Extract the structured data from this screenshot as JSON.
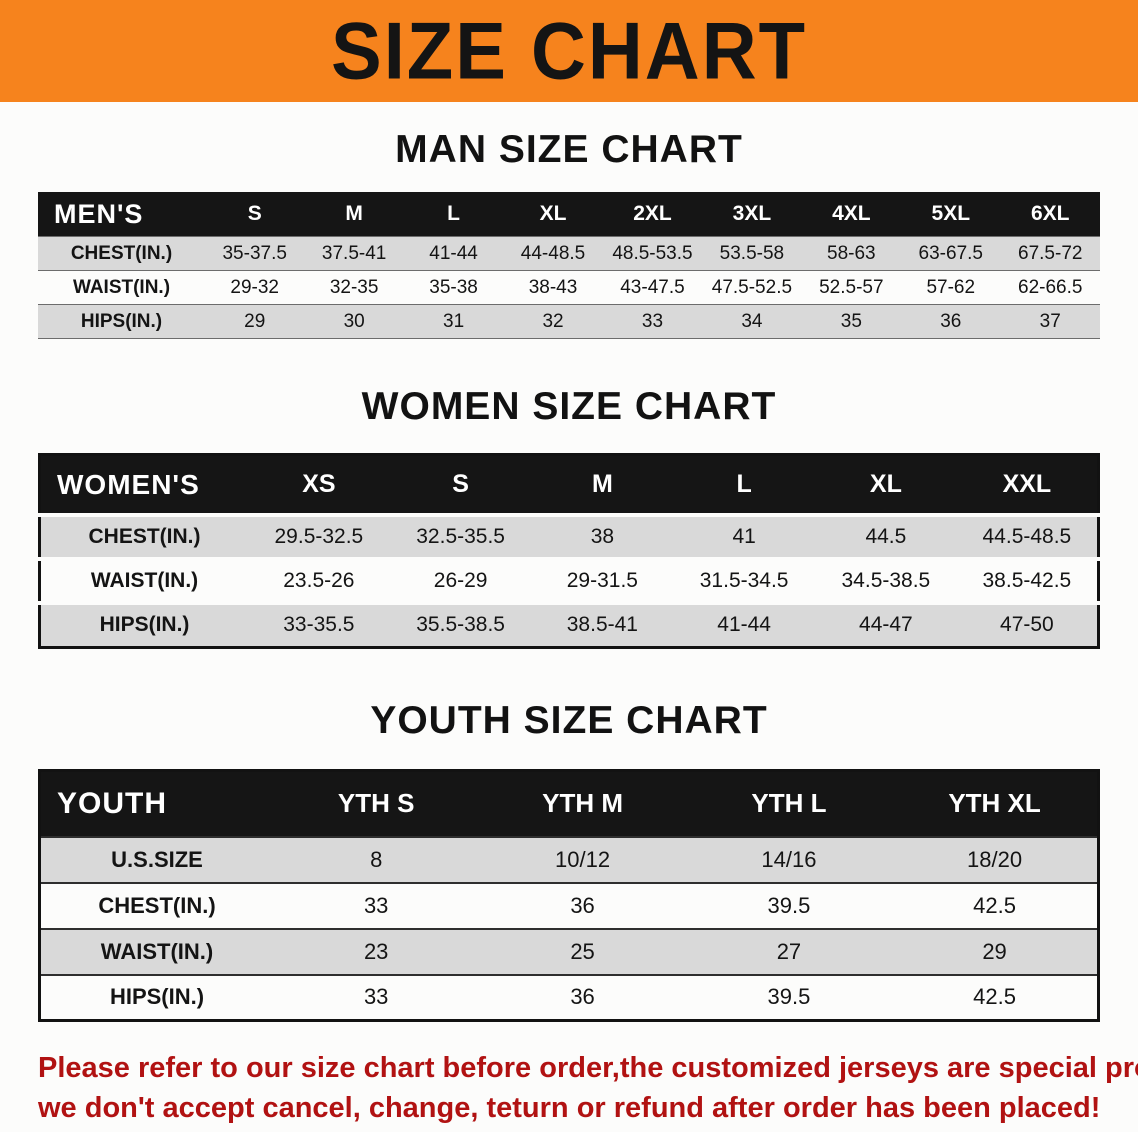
{
  "banner": {
    "title": "SIZE CHART",
    "bg_color": "#f6831d"
  },
  "sections": [
    {
      "heading": "MAN SIZE CHART",
      "table": {
        "header_label": "MEN'S",
        "columns": [
          "S",
          "M",
          "L",
          "XL",
          "2XL",
          "3XL",
          "4XL",
          "5XL",
          "6XL"
        ],
        "rows": [
          {
            "label": "CHEST(IN.)",
            "values": [
              "35-37.5",
              "37.5-41",
              "41-44",
              "44-48.5",
              "48.5-53.5",
              "53.5-58",
              "58-63",
              "63-67.5",
              "67.5-72"
            ]
          },
          {
            "label": "WAIST(IN.)",
            "values": [
              "29-32",
              "32-35",
              "35-38",
              "38-43",
              "43-47.5",
              "47.5-52.5",
              "52.5-57",
              "57-62",
              "62-66.5"
            ]
          },
          {
            "label": "HIPS(IN.)",
            "values": [
              "29",
              "30",
              "31",
              "32",
              "33",
              "34",
              "35",
              "36",
              "37"
            ]
          }
        ]
      }
    },
    {
      "heading": "WOMEN SIZE CHART",
      "table": {
        "header_label": "WOMEN'S",
        "columns": [
          "XS",
          "S",
          "M",
          "L",
          "XL",
          "XXL"
        ],
        "rows": [
          {
            "label": "CHEST(IN.)",
            "values": [
              "29.5-32.5",
              "32.5-35.5",
              "38",
              "41",
              "44.5",
              "44.5-48.5"
            ]
          },
          {
            "label": "WAIST(IN.)",
            "values": [
              "23.5-26",
              "26-29",
              "29-31.5",
              "31.5-34.5",
              "34.5-38.5",
              "38.5-42.5"
            ]
          },
          {
            "label": "HIPS(IN.)",
            "values": [
              "33-35.5",
              "35.5-38.5",
              "38.5-41",
              "41-44",
              "44-47",
              "47-50"
            ]
          }
        ]
      }
    },
    {
      "heading": "YOUTH SIZE CHART",
      "table": {
        "header_label": "YOUTH",
        "columns": [
          "YTH S",
          "YTH M",
          "YTH L",
          "YTH XL"
        ],
        "rows": [
          {
            "label": "U.S.SIZE",
            "values": [
              "8",
              "10/12",
              "14/16",
              "18/20"
            ]
          },
          {
            "label": "CHEST(IN.)",
            "values": [
              "33",
              "36",
              "39.5",
              "42.5"
            ]
          },
          {
            "label": "WAIST(IN.)",
            "values": [
              "23",
              "25",
              "27",
              "29"
            ]
          },
          {
            "label": "HIPS(IN.)",
            "values": [
              "33",
              "36",
              "39.5",
              "42.5"
            ]
          }
        ]
      }
    }
  ],
  "disclaimer": {
    "line1": "Please refer to our size chart before order,the customized jerseys are special products,",
    "line2": "we don't accept cancel, change, teturn or refund after order has been placed!",
    "color": "#b11212"
  }
}
